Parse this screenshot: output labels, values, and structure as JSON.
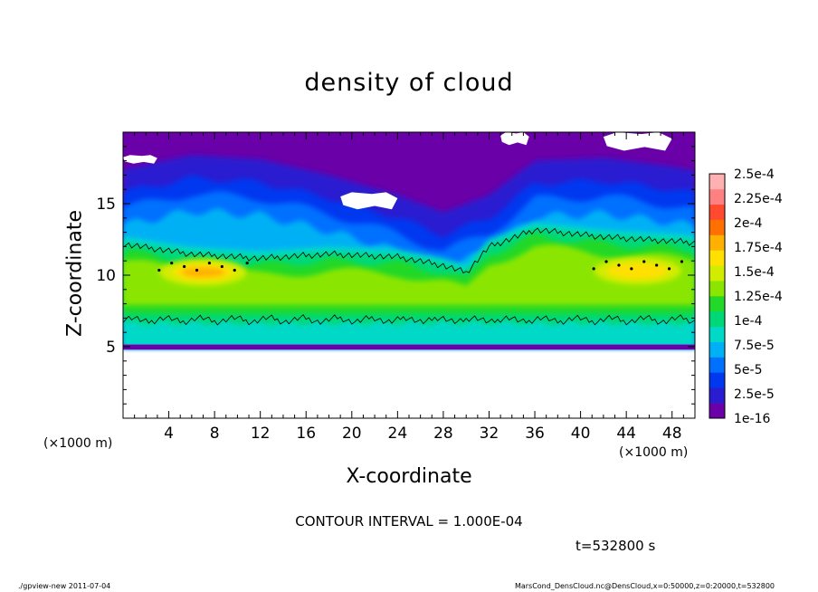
{
  "figure": {
    "title": "density of cloud",
    "xlabel": "X-coordinate",
    "ylabel": "Z-coordinate",
    "x_unit_left": "(×1000 m)",
    "x_unit_right": "(×1000 m)",
    "contour_note": "CONTOUR INTERVAL = 1.000E-04",
    "time_label": "t=532800 s",
    "footer_left": "./gpview-new   2011-07-04",
    "footer_right": "MarsCond_DensCloud.nc@DensCloud,x=0:50000,z=0:20000,t=532800"
  },
  "chart_data": {
    "type": "heatmap",
    "title": "density of cloud",
    "xlabel": "X-coordinate",
    "ylabel": "Z-coordinate",
    "xlim": [
      0,
      50
    ],
    "ylim": [
      0,
      20
    ],
    "x_ticks": [
      4,
      8,
      12,
      16,
      20,
      24,
      28,
      32,
      36,
      40,
      44,
      48
    ],
    "y_ticks": [
      5,
      10,
      15
    ],
    "contour_interval": 0.0001,
    "colorbar": {
      "labels": [
        "1e-16",
        "2.5e-5",
        "5e-5",
        "7.5e-5",
        "1e-4",
        "1.25e-4",
        "1.5e-4",
        "1.75e-4",
        "2e-4",
        "2.25e-4",
        "2.5e-4"
      ],
      "colors": [
        "#6a00a8",
        "#2a1cd0",
        "#0038f0",
        "#0070ff",
        "#00b0f5",
        "#00d8c8",
        "#00d878",
        "#22d828",
        "#8ae600",
        "#d2ec00",
        "#ffe000",
        "#ffb000",
        "#ff7000",
        "#ff4a30",
        "#ff8080",
        "#ffb0b0"
      ]
    },
    "cloud_layer": {
      "z_bottom": 4.8,
      "upper_edge_profile": {
        "x": [
          0,
          6,
          12,
          18,
          24,
          28,
          32,
          36,
          42,
          48,
          50
        ],
        "z": [
          15.8,
          16.8,
          16.5,
          15.4,
          14,
          12.8,
          14,
          16.4,
          16.6,
          16,
          15.7
        ]
      },
      "contour_1e-4_top": {
        "x": [
          0,
          6,
          12,
          18,
          24,
          28,
          30,
          32,
          36,
          42,
          48,
          50
        ],
        "z": [
          12.2,
          11.5,
          11.2,
          11.5,
          11.3,
          10.7,
          10.2,
          12.0,
          13.2,
          12.7,
          12.4,
          12.3
        ]
      },
      "contour_1e-4_bottom_z": 6.9,
      "maxima": [
        {
          "x": 7,
          "z": 10.2,
          "value": "2.25e-4"
        },
        {
          "x": 45,
          "z": 10.3,
          "value": "2e-4"
        }
      ]
    },
    "missing_regions": [
      {
        "x": [
          0,
          3
        ],
        "z": [
          17.8,
          18.4
        ]
      },
      {
        "x": [
          19,
          24
        ],
        "z": [
          14.6,
          15.8
        ]
      },
      {
        "x": [
          33,
          35.5
        ],
        "z": [
          19.1,
          20
        ]
      },
      {
        "x": [
          42,
          48
        ],
        "z": [
          18.7,
          20
        ]
      }
    ]
  }
}
